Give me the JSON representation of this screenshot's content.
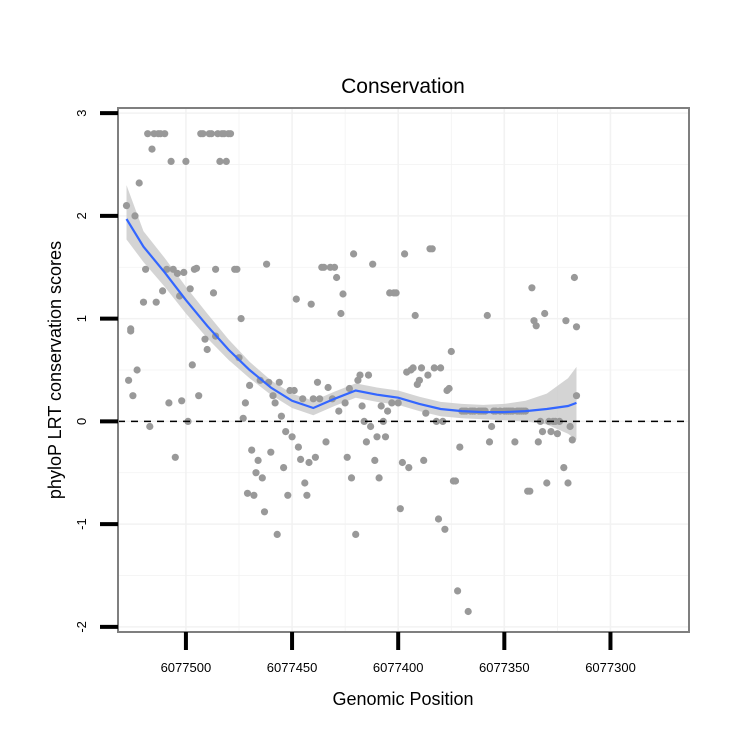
{
  "chart_data": {
    "type": "scatter",
    "title": "Conservation",
    "xlabel": "Genomic Position",
    "ylabel": "phyloP LRT conservation scores",
    "xlim": [
      6077532,
      6077263
    ],
    "ylim": [
      -2.05,
      3.05
    ],
    "x_reversed": true,
    "x_ticks": [
      6077500,
      6077450,
      6077400,
      6077350,
      6077300
    ],
    "x_tick_labels": [
      "6077500",
      "6077450",
      "6077400",
      "6077350",
      "6077300"
    ],
    "y_ticks": [
      -2,
      -1,
      0,
      1,
      2,
      3
    ],
    "y_tick_labels": [
      "-2",
      "-1",
      "0",
      "1",
      "2",
      "3"
    ],
    "grid": true,
    "reference_line": {
      "y": 0,
      "style": "dashed",
      "color": "#000000"
    },
    "colors": {
      "points": "#999999",
      "smooth": "#3366FF",
      "ribbon": "#CCCCCC",
      "panel_border": "#7F7F7F",
      "grid": "#F2F2F2"
    },
    "series": [
      {
        "name": "scores",
        "points": [
          [
            6077528,
            2.1
          ],
          [
            6077527,
            0.4
          ],
          [
            6077526,
            0.9
          ],
          [
            6077526,
            0.88
          ],
          [
            6077525,
            0.25
          ],
          [
            6077524,
            2.0
          ],
          [
            6077523,
            0.5
          ],
          [
            6077522,
            2.32
          ],
          [
            6077520,
            1.16
          ],
          [
            6077519,
            1.48
          ],
          [
            6077518,
            2.8
          ],
          [
            6077517,
            -0.05
          ],
          [
            6077516,
            2.65
          ],
          [
            6077515,
            2.8
          ],
          [
            6077514,
            1.16
          ],
          [
            6077513,
            2.8
          ],
          [
            6077512,
            2.8
          ],
          [
            6077511,
            1.27
          ],
          [
            6077510,
            2.8
          ],
          [
            6077509,
            1.48
          ],
          [
            6077508,
            0.18
          ],
          [
            6077507,
            2.53
          ],
          [
            6077506,
            1.48
          ],
          [
            6077505,
            -0.35
          ],
          [
            6077504,
            1.44
          ],
          [
            6077503,
            1.22
          ],
          [
            6077502,
            0.2
          ],
          [
            6077501,
            1.45
          ],
          [
            6077500,
            2.53
          ],
          [
            6077499,
            0.0
          ],
          [
            6077498,
            1.29
          ],
          [
            6077497,
            0.55
          ],
          [
            6077496,
            1.48
          ],
          [
            6077495,
            1.49
          ],
          [
            6077494,
            0.25
          ],
          [
            6077493,
            2.8
          ],
          [
            6077492,
            2.8
          ],
          [
            6077491,
            0.8
          ],
          [
            6077490,
            0.7
          ],
          [
            6077489,
            2.8
          ],
          [
            6077488,
            2.8
          ],
          [
            6077487,
            1.25
          ],
          [
            6077486,
            1.48
          ],
          [
            6077486,
            0.83
          ],
          [
            6077485,
            2.8
          ],
          [
            6077484,
            2.53
          ],
          [
            6077483,
            2.8
          ],
          [
            6077482,
            2.8
          ],
          [
            6077481,
            2.53
          ],
          [
            6077480,
            2.8
          ],
          [
            6077479,
            2.8
          ],
          [
            6077477,
            1.48
          ],
          [
            6077476,
            1.48
          ],
          [
            6077475,
            0.62
          ],
          [
            6077474,
            1.0
          ],
          [
            6077473,
            0.03
          ],
          [
            6077472,
            0.18
          ],
          [
            6077471,
            -0.7
          ],
          [
            6077470,
            0.35
          ],
          [
            6077469,
            -0.28
          ],
          [
            6077468,
            -0.72
          ],
          [
            6077467,
            -0.5
          ],
          [
            6077466,
            -0.38
          ],
          [
            6077465,
            0.4
          ],
          [
            6077464,
            -0.55
          ],
          [
            6077463,
            -0.88
          ],
          [
            6077462,
            1.53
          ],
          [
            6077461,
            0.38
          ],
          [
            6077460,
            -0.3
          ],
          [
            6077459,
            0.25
          ],
          [
            6077458,
            0.18
          ],
          [
            6077457,
            -1.1
          ],
          [
            6077456,
            0.38
          ],
          [
            6077455,
            0.05
          ],
          [
            6077454,
            -0.45
          ],
          [
            6077453,
            -0.1
          ],
          [
            6077452,
            -0.72
          ],
          [
            6077451,
            0.3
          ],
          [
            6077450,
            -0.15
          ],
          [
            6077449,
            0.3
          ],
          [
            6077448,
            1.19
          ],
          [
            6077447,
            -0.25
          ],
          [
            6077446,
            -0.37
          ],
          [
            6077445,
            0.22
          ],
          [
            6077444,
            -0.6
          ],
          [
            6077443,
            -0.72
          ],
          [
            6077442,
            -0.4
          ],
          [
            6077441,
            1.14
          ],
          [
            6077440,
            0.22
          ],
          [
            6077439,
            -0.35
          ],
          [
            6077438,
            0.38
          ],
          [
            6077437,
            0.22
          ],
          [
            6077436,
            1.5
          ],
          [
            6077435,
            1.5
          ],
          [
            6077434,
            -0.2
          ],
          [
            6077433,
            0.33
          ],
          [
            6077432,
            1.5
          ],
          [
            6077431,
            0.22
          ],
          [
            6077430,
            1.5
          ],
          [
            6077429,
            1.4
          ],
          [
            6077428,
            0.1
          ],
          [
            6077427,
            1.05
          ],
          [
            6077426,
            1.24
          ],
          [
            6077425,
            0.18
          ],
          [
            6077424,
            -0.35
          ],
          [
            6077423,
            0.32
          ],
          [
            6077422,
            -0.55
          ],
          [
            6077421,
            1.63
          ],
          [
            6077420,
            -1.1
          ],
          [
            6077419,
            0.4
          ],
          [
            6077418,
            0.45
          ],
          [
            6077417,
            0.15
          ],
          [
            6077416,
            0.0
          ],
          [
            6077415,
            -0.2
          ],
          [
            6077414,
            0.45
          ],
          [
            6077413,
            -0.05
          ],
          [
            6077412,
            1.53
          ],
          [
            6077411,
            -0.38
          ],
          [
            6077410,
            -0.15
          ],
          [
            6077409,
            -0.55
          ],
          [
            6077408,
            0.15
          ],
          [
            6077407,
            0.0
          ],
          [
            6077406,
            -0.15
          ],
          [
            6077405,
            0.1
          ],
          [
            6077404,
            1.25
          ],
          [
            6077403,
            0.18
          ],
          [
            6077402,
            1.25
          ],
          [
            6077401,
            1.25
          ],
          [
            6077400,
            0.18
          ],
          [
            6077399,
            -0.85
          ],
          [
            6077398,
            -0.4
          ],
          [
            6077397,
            1.63
          ],
          [
            6077396,
            0.48
          ],
          [
            6077395,
            -0.45
          ],
          [
            6077394,
            0.5
          ],
          [
            6077393,
            0.52
          ],
          [
            6077392,
            1.03
          ],
          [
            6077391,
            0.36
          ],
          [
            6077390,
            0.4
          ],
          [
            6077389,
            0.52
          ],
          [
            6077388,
            -0.38
          ],
          [
            6077387,
            0.08
          ],
          [
            6077386,
            0.45
          ],
          [
            6077385,
            1.68
          ],
          [
            6077384,
            1.68
          ],
          [
            6077383,
            0.52
          ],
          [
            6077382,
            0.0
          ],
          [
            6077381,
            -0.95
          ],
          [
            6077380,
            0.52
          ],
          [
            6077379,
            0.0
          ],
          [
            6077378,
            -1.05
          ],
          [
            6077377,
            0.3
          ],
          [
            6077376,
            0.32
          ],
          [
            6077375,
            0.68
          ],
          [
            6077374,
            -0.58
          ],
          [
            6077373,
            -0.58
          ],
          [
            6077372,
            -1.65
          ],
          [
            6077371,
            -0.25
          ],
          [
            6077370,
            0.1
          ],
          [
            6077369,
            0.1
          ],
          [
            6077368,
            0.1
          ],
          [
            6077367,
            -1.85
          ],
          [
            6077366,
            0.1
          ],
          [
            6077365,
            0.1
          ],
          [
            6077364,
            0.1
          ],
          [
            6077362,
            0.1
          ],
          [
            6077361,
            0.1
          ],
          [
            6077360,
            0.1
          ],
          [
            6077359,
            0.1
          ],
          [
            6077358,
            1.03
          ],
          [
            6077357,
            -0.2
          ],
          [
            6077356,
            -0.05
          ],
          [
            6077355,
            0.1
          ],
          [
            6077354,
            0.1
          ],
          [
            6077352,
            0.1
          ],
          [
            6077350,
            0.1
          ],
          [
            6077349,
            0.1
          ],
          [
            6077348,
            0.1
          ],
          [
            6077347,
            0.1
          ],
          [
            6077346,
            0.1
          ],
          [
            6077345,
            -0.2
          ],
          [
            6077344,
            0.1
          ],
          [
            6077343,
            0.1
          ],
          [
            6077342,
            0.1
          ],
          [
            6077341,
            0.1
          ],
          [
            6077340,
            0.1
          ],
          [
            6077339,
            -0.68
          ],
          [
            6077338,
            -0.68
          ],
          [
            6077337,
            1.3
          ],
          [
            6077336,
            0.98
          ],
          [
            6077335,
            0.93
          ],
          [
            6077334,
            -0.2
          ],
          [
            6077333,
            0.0
          ],
          [
            6077332,
            -0.1
          ],
          [
            6077331,
            1.05
          ],
          [
            6077330,
            -0.6
          ],
          [
            6077329,
            0.0
          ],
          [
            6077328,
            -0.1
          ],
          [
            6077327,
            0.0
          ],
          [
            6077326,
            0.0
          ],
          [
            6077325,
            -0.12
          ],
          [
            6077324,
            0.0
          ],
          [
            6077322,
            -0.45
          ],
          [
            6077321,
            0.98
          ],
          [
            6077320,
            -0.6
          ],
          [
            6077319,
            -0.05
          ],
          [
            6077318,
            -0.18
          ],
          [
            6077317,
            1.4
          ],
          [
            6077316,
            0.92
          ],
          [
            6077316,
            0.25
          ]
        ]
      }
    ],
    "smooth": {
      "method": "loess",
      "x": [
        6077528,
        6077520,
        6077510,
        6077500,
        6077490,
        6077480,
        6077470,
        6077460,
        6077450,
        6077440,
        6077430,
        6077420,
        6077410,
        6077400,
        6077390,
        6077380,
        6077370,
        6077360,
        6077350,
        6077340,
        6077330,
        6077320,
        6077316
      ],
      "y": [
        1.97,
        1.7,
        1.45,
        1.18,
        0.93,
        0.7,
        0.5,
        0.33,
        0.2,
        0.13,
        0.22,
        0.3,
        0.26,
        0.23,
        0.17,
        0.12,
        0.1,
        0.09,
        0.09,
        0.1,
        0.12,
        0.15,
        0.18
      ],
      "lower": [
        1.77,
        1.55,
        1.31,
        1.05,
        0.81,
        0.6,
        0.42,
        0.26,
        0.13,
        0.06,
        0.15,
        0.23,
        0.19,
        0.16,
        0.1,
        0.05,
        0.03,
        0.02,
        0.01,
        0.0,
        -0.03,
        -0.12,
        -0.18
      ],
      "upper": [
        2.3,
        1.85,
        1.59,
        1.31,
        1.05,
        0.8,
        0.58,
        0.4,
        0.27,
        0.2,
        0.29,
        0.37,
        0.33,
        0.3,
        0.24,
        0.19,
        0.17,
        0.16,
        0.17,
        0.2,
        0.27,
        0.42,
        0.53
      ]
    }
  }
}
